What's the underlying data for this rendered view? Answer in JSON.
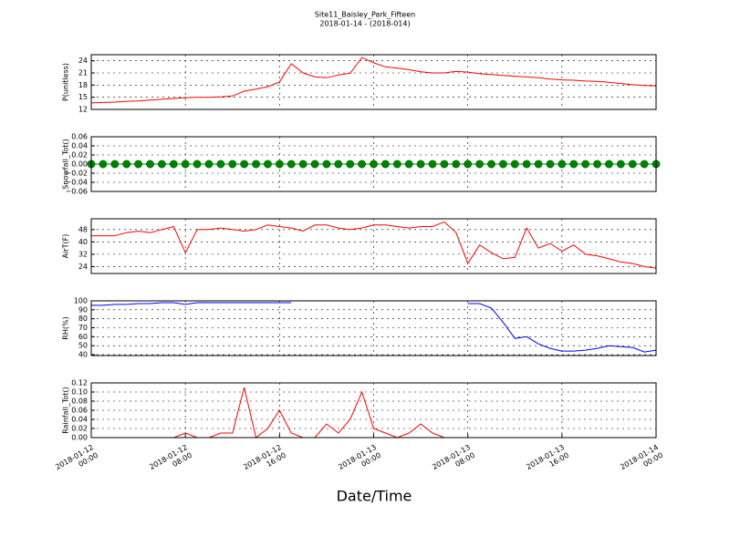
{
  "chart_data": {
    "type": "line",
    "title": "Site11_Baisley_Park_Fifteen",
    "subtitle": "2018-01-14 - (2018-014)",
    "xlabel": "Date/Time",
    "grid": true,
    "x": [
      "2018-01-12 00:00",
      "2018-01-12 01:00",
      "2018-01-12 02:00",
      "2018-01-12 03:00",
      "2018-01-12 04:00",
      "2018-01-12 05:00",
      "2018-01-12 06:00",
      "2018-01-12 07:00",
      "2018-01-12 08:00",
      "2018-01-12 09:00",
      "2018-01-12 10:00",
      "2018-01-12 11:00",
      "2018-01-12 12:00",
      "2018-01-12 13:00",
      "2018-01-12 14:00",
      "2018-01-12 15:00",
      "2018-01-12 16:00",
      "2018-01-12 17:00",
      "2018-01-12 18:00",
      "2018-01-12 19:00",
      "2018-01-12 20:00",
      "2018-01-12 21:00",
      "2018-01-12 22:00",
      "2018-01-12 23:00",
      "2018-01-13 00:00",
      "2018-01-13 01:00",
      "2018-01-13 02:00",
      "2018-01-13 03:00",
      "2018-01-13 04:00",
      "2018-01-13 05:00",
      "2018-01-13 06:00",
      "2018-01-13 07:00",
      "2018-01-13 08:00",
      "2018-01-13 09:00",
      "2018-01-13 10:00",
      "2018-01-13 11:00",
      "2018-01-13 12:00",
      "2018-01-13 13:00",
      "2018-01-13 14:00",
      "2018-01-13 15:00",
      "2018-01-13 16:00",
      "2018-01-13 17:00",
      "2018-01-13 18:00",
      "2018-01-13 19:00",
      "2018-01-13 20:00",
      "2018-01-13 21:00",
      "2018-01-13 22:00",
      "2018-01-13 23:00",
      "2018-01-14 00:00"
    ],
    "xlim": [
      "2018-01-12 00:00",
      "2018-01-14 00:00"
    ],
    "xticks": [
      {
        "value": "2018-01-12 00:00",
        "label": "2018-01-12\n00:00"
      },
      {
        "value": "2018-01-12 08:00",
        "label": "2018-01-12\n08:00"
      },
      {
        "value": "2018-01-12 16:00",
        "label": "2018-01-12\n16:00"
      },
      {
        "value": "2018-01-13 00:00",
        "label": "2018-01-13\n00:00"
      },
      {
        "value": "2018-01-13 08:00",
        "label": "2018-01-13\n08:00"
      },
      {
        "value": "2018-01-13 16:00",
        "label": "2018-01-13\n16:00"
      },
      {
        "value": "2018-01-14 00:00",
        "label": "2018-01-14\n00:00"
      }
    ],
    "panels": [
      {
        "ylabel": "P(unitless)",
        "ylim": [
          12,
          25.5
        ],
        "yticks": [
          12,
          15,
          18,
          21,
          24
        ],
        "color": "#ff0000",
        "values": [
          13.6,
          13.7,
          13.8,
          14.0,
          14.1,
          14.3,
          14.5,
          14.7,
          14.9,
          15.0,
          15.0,
          15.1,
          15.3,
          16.5,
          17.0,
          17.6,
          18.8,
          23.3,
          21.0,
          20.0,
          19.8,
          20.5,
          20.9,
          24.8,
          23.5,
          22.5,
          22.2,
          21.8,
          21.3,
          21.0,
          21.0,
          21.4,
          21.2,
          20.8,
          20.6,
          20.4,
          20.2,
          20.0,
          19.8,
          19.5,
          19.3,
          19.2,
          19.0,
          18.9,
          18.7,
          18.4,
          18.1,
          17.9,
          17.8
        ]
      },
      {
        "ylabel": "Snowfall_Tot()",
        "ylim": [
          -0.06,
          0.06
        ],
        "color": "#008000",
        "marker": "o",
        "yticks": [
          {
            "value": -0.06,
            "label": "−0.06"
          },
          {
            "value": -0.04,
            "label": "−0.04"
          },
          {
            "value": -0.02,
            "label": "−0.02"
          },
          {
            "value": 0,
            "label": "0.00"
          },
          {
            "value": 0.02,
            "label": "0.02"
          },
          {
            "value": 0.04,
            "label": "0.04"
          },
          {
            "value": 0.06,
            "label": "0.06"
          }
        ],
        "values": [
          0,
          0,
          0,
          0,
          0,
          0,
          0,
          0,
          0,
          0,
          0,
          0,
          0,
          0,
          0,
          0,
          0,
          0,
          0,
          0,
          0,
          0,
          0,
          0,
          0,
          0,
          0,
          0,
          0,
          0,
          0,
          0,
          0,
          0,
          0,
          0,
          0,
          0,
          0,
          0,
          0,
          0,
          0,
          0,
          0,
          0,
          0,
          0,
          0
        ]
      },
      {
        "ylabel": "AirT(F)",
        "ylim": [
          19.5,
          55
        ],
        "yticks": [
          24,
          32,
          40,
          48
        ],
        "color": "#ff0000",
        "values": [
          44,
          44,
          44,
          46,
          47,
          46,
          48,
          50,
          33,
          48,
          48,
          49,
          48,
          47,
          48,
          51,
          50,
          49,
          47,
          51,
          51,
          49,
          48,
          49,
          51,
          51,
          50,
          49,
          50,
          50,
          53,
          46,
          26,
          38,
          33,
          29,
          30,
          49,
          36,
          39,
          34,
          38,
          32,
          31,
          29,
          27,
          26,
          24,
          23
        ]
      },
      {
        "ylabel": "RH(%)",
        "ylim": [
          39,
          100
        ],
        "yticks": [
          40,
          50,
          60,
          70,
          80,
          90,
          100
        ],
        "color": "#0000ff",
        "values": [
          95,
          95,
          96,
          96,
          97,
          97,
          98,
          98,
          96,
          98,
          98,
          98,
          98,
          98,
          98,
          98,
          98,
          98,
          null,
          null,
          null,
          null,
          null,
          null,
          null,
          null,
          null,
          null,
          null,
          null,
          null,
          null,
          97,
          97,
          92,
          76,
          58,
          60,
          52,
          47,
          44,
          44,
          45,
          47,
          50,
          49,
          48,
          43,
          45
        ]
      },
      {
        "ylabel": "Rainfall_Tot()",
        "ylim": [
          0,
          0.12
        ],
        "color": "#ff0000",
        "yticks": [
          {
            "value": 0,
            "label": "0.00"
          },
          {
            "value": 0.02,
            "label": "0.02"
          },
          {
            "value": 0.04,
            "label": "0.04"
          },
          {
            "value": 0.06,
            "label": "0.06"
          },
          {
            "value": 0.08,
            "label": "0.08"
          },
          {
            "value": 0.1,
            "label": "0.10"
          },
          {
            "value": 0.12,
            "label": "0.12"
          }
        ],
        "values": [
          0,
          0,
          0,
          0,
          0,
          0,
          0,
          0,
          0.01,
          0,
          0,
          0.01,
          0.01,
          0.11,
          0,
          0.02,
          0.06,
          0.01,
          0,
          0,
          0.03,
          0.01,
          0.04,
          0.1,
          0.02,
          0.01,
          0,
          0.01,
          0.03,
          0.01,
          0,
          0,
          0,
          0,
          0,
          0,
          0,
          0,
          0,
          0,
          0,
          0,
          0,
          0,
          0,
          0,
          0,
          0,
          0
        ]
      }
    ]
  }
}
